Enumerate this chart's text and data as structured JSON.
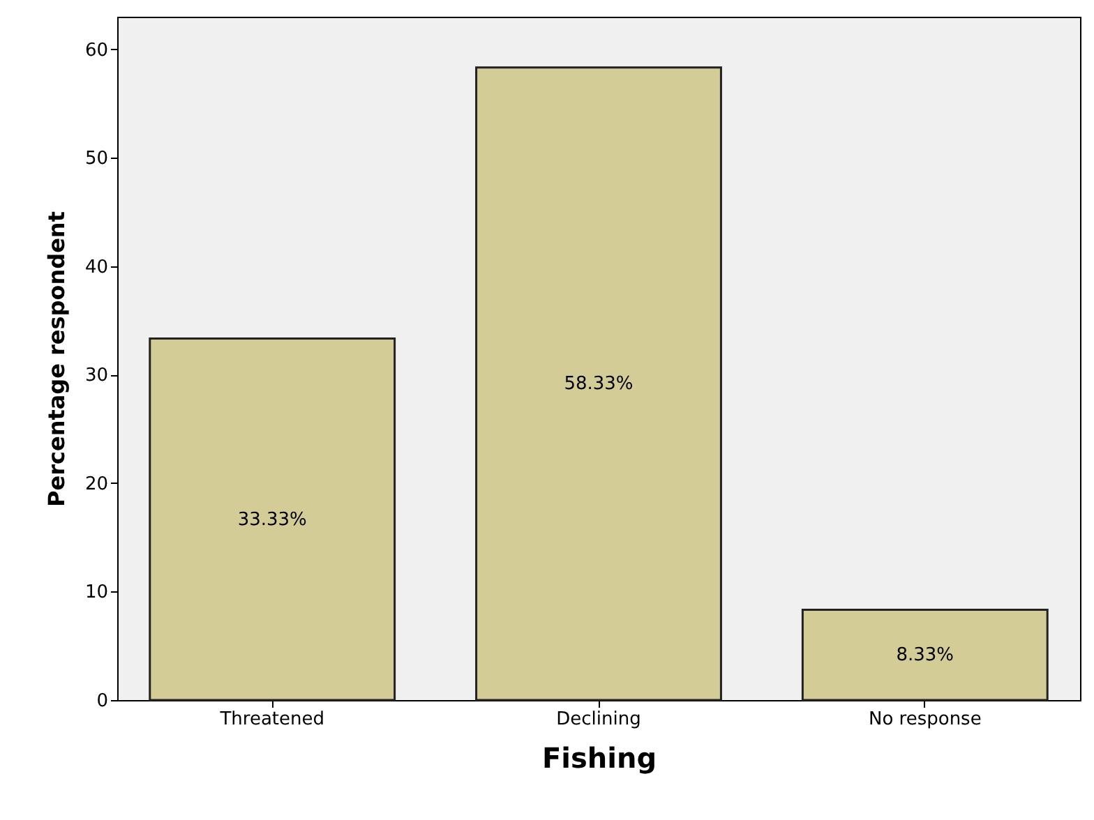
{
  "chart_data": {
    "type": "bar",
    "xlabel": "Fishing",
    "ylabel": "Percentage respondent",
    "categories": [
      "Threatened",
      "Declining",
      "No response"
    ],
    "values": [
      33.33,
      58.33,
      8.33
    ],
    "value_labels": [
      "33.33%",
      "58.33%",
      "8.33%"
    ],
    "color": "#d3cc96",
    "ylim": [
      0,
      63
    ],
    "yticks": [
      0,
      10,
      20,
      30,
      40,
      50,
      60
    ],
    "grid": false
  }
}
